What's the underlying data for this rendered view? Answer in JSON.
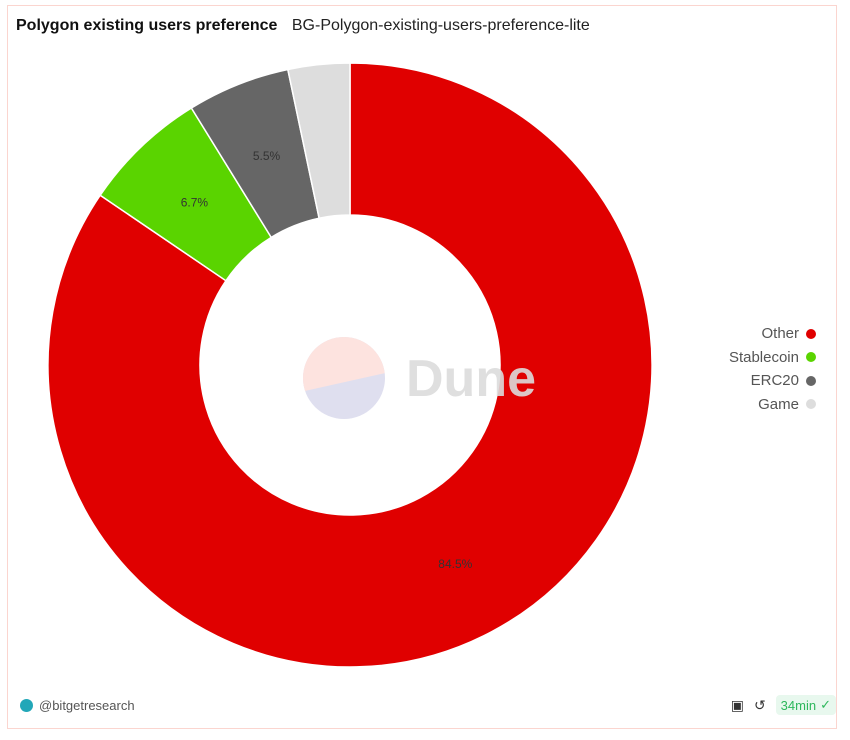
{
  "header": {
    "title": "Polygon existing users preference",
    "subtitle": "BG-Polygon-existing-users-preference-lite"
  },
  "chart_data": {
    "type": "pie",
    "donut": true,
    "categories": [
      "Other",
      "Stablecoin",
      "ERC20",
      "Game"
    ],
    "values": [
      84.5,
      6.7,
      5.5,
      3.3
    ],
    "labels": [
      "84.5%",
      "6.7%",
      "5.5%",
      ""
    ],
    "colors": [
      "#e00000",
      "#5ad400",
      "#666666",
      "#dddddd"
    ],
    "legend_position": "right",
    "watermark": "Dune"
  },
  "footer": {
    "author": "@bitgetresearch",
    "refresh": "34min",
    "icons": [
      "camera-icon",
      "refresh-icon",
      "check-circle-icon"
    ]
  }
}
